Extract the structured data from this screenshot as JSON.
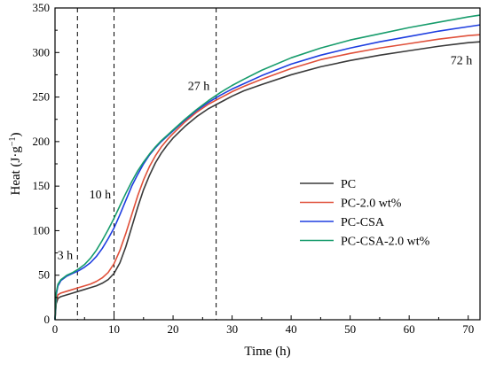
{
  "chart_data": {
    "type": "line",
    "xlabel": "Time (h)",
    "ylabel_main": "Heat (J·g",
    "ylabel_sup": "−1",
    "ylabel_close": ")",
    "xlim": [
      0,
      72
    ],
    "ylim": [
      0,
      350
    ],
    "x_ticks": [
      0,
      10,
      20,
      30,
      40,
      50,
      60,
      70
    ],
    "y_ticks": [
      0,
      50,
      100,
      150,
      200,
      250,
      300,
      350
    ],
    "grid": false,
    "legend_position": "center-right",
    "vlines": [
      3.8,
      10,
      27.3
    ],
    "annotations": [
      {
        "text": "3 h",
        "x": 0.4,
        "y": 68
      },
      {
        "text": "10 h",
        "x": 5.8,
        "y": 136
      },
      {
        "text": "27 h",
        "x": 22.5,
        "y": 258
      },
      {
        "text": "72 h",
        "x": 67,
        "y": 287
      }
    ],
    "series": [
      {
        "name": "PC",
        "color": "#3a3a3a",
        "x": [
          0,
          0.2,
          0.5,
          1,
          2,
          3,
          4,
          5,
          6,
          7,
          8,
          9,
          10,
          11,
          12,
          13,
          14,
          15,
          16,
          17,
          18,
          19,
          20,
          22,
          24,
          26,
          28,
          30,
          32,
          35,
          40,
          45,
          50,
          55,
          60,
          65,
          70,
          72
        ],
        "y": [
          0,
          18,
          24,
          26,
          28,
          30,
          32,
          34,
          36,
          38,
          41,
          45,
          52,
          64,
          82,
          104,
          126,
          146,
          162,
          176,
          187,
          196,
          204,
          217,
          228,
          237,
          244,
          251,
          257,
          264,
          275,
          284,
          291,
          297,
          302,
          307,
          311,
          312
        ]
      },
      {
        "name": "PC-2.0 wt%",
        "color": "#e0503a",
        "x": [
          0,
          0.2,
          0.5,
          1,
          2,
          3,
          4,
          5,
          6,
          7,
          8,
          9,
          10,
          11,
          12,
          13,
          14,
          15,
          16,
          17,
          18,
          19,
          20,
          22,
          24,
          26,
          28,
          30,
          32,
          35,
          40,
          45,
          50,
          55,
          60,
          65,
          70,
          72
        ],
        "y": [
          0,
          22,
          28,
          30,
          32,
          34,
          36,
          38,
          40,
          43,
          47,
          53,
          63,
          78,
          97,
          118,
          139,
          157,
          172,
          184,
          194,
          202,
          209,
          222,
          233,
          242,
          249,
          256,
          262,
          270,
          282,
          292,
          299,
          305,
          310,
          315,
          319,
          320
        ]
      },
      {
        "name": "PC-CSA",
        "color": "#1e3ee0",
        "x": [
          0,
          0.2,
          0.5,
          1,
          2,
          3,
          4,
          5,
          6,
          7,
          8,
          9,
          10,
          11,
          12,
          13,
          14,
          15,
          16,
          17,
          18,
          19,
          20,
          22,
          24,
          26,
          28,
          30,
          32,
          35,
          40,
          45,
          50,
          55,
          60,
          65,
          70,
          72
        ],
        "y": [
          0,
          28,
          38,
          44,
          49,
          52,
          55,
          59,
          64,
          71,
          80,
          91,
          103,
          118,
          134,
          150,
          163,
          175,
          185,
          193,
          200,
          206,
          212,
          224,
          235,
          244,
          252,
          259,
          265,
          274,
          287,
          297,
          305,
          312,
          318,
          324,
          329,
          331
        ]
      },
      {
        "name": "PC-CSA-2.0 wt%",
        "color": "#179c6c",
        "x": [
          0,
          0.2,
          0.5,
          1,
          2,
          3,
          4,
          5,
          6,
          7,
          8,
          9,
          10,
          11,
          12,
          13,
          14,
          15,
          16,
          17,
          18,
          19,
          20,
          22,
          24,
          26,
          28,
          30,
          32,
          35,
          40,
          45,
          50,
          55,
          60,
          65,
          70,
          72
        ],
        "y": [
          0,
          30,
          40,
          45,
          50,
          53,
          57,
          62,
          69,
          78,
          89,
          101,
          114,
          128,
          142,
          155,
          167,
          177,
          186,
          194,
          201,
          207,
          213,
          225,
          236,
          246,
          255,
          263,
          270,
          280,
          294,
          305,
          314,
          321,
          328,
          334,
          340,
          342
        ]
      }
    ]
  }
}
